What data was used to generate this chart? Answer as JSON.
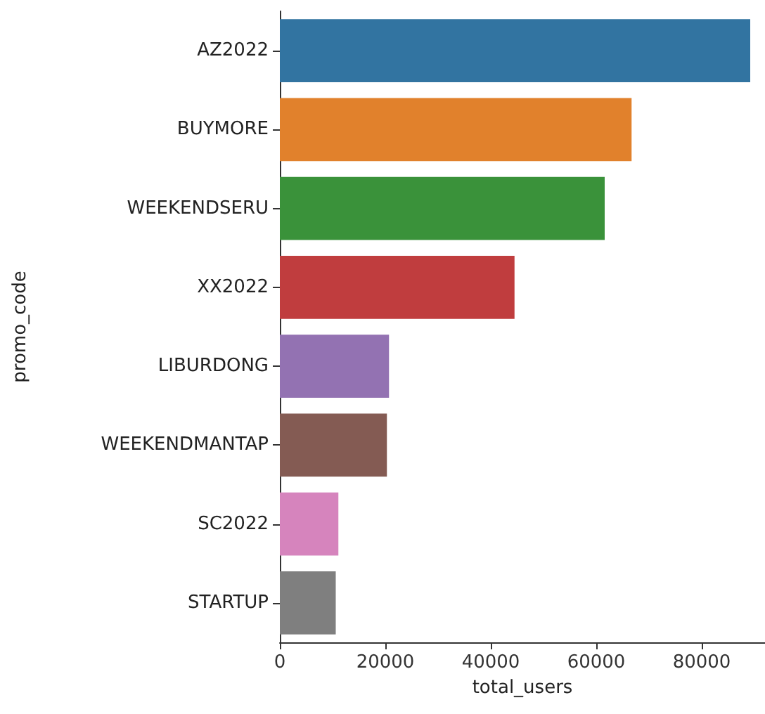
{
  "chart_data": {
    "type": "bar",
    "orientation": "horizontal",
    "xlabel": "total_users",
    "ylabel": "promo_code",
    "categories": [
      "AZ2022",
      "BUYMORE",
      "WEEKENDSERU",
      "XX2022",
      "LIBURDONG",
      "WEEKENDMANTAP",
      "SC2022",
      "STARTUP"
    ],
    "values": [
      89200,
      66700,
      61600,
      44500,
      20700,
      20300,
      11100,
      10600
    ],
    "colors": [
      "#3274a1",
      "#e1812c",
      "#3a923a",
      "#c03d3e",
      "#9372b2",
      "#845b53",
      "#d684bd",
      "#7f7f7f"
    ],
    "xlim": [
      0,
      92000
    ],
    "xticks": [
      0,
      20000,
      40000,
      60000,
      80000
    ],
    "grid": false
  }
}
